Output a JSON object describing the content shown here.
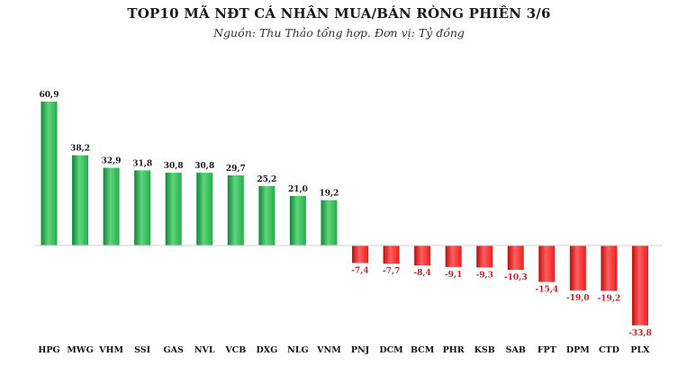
{
  "chart_data": {
    "type": "bar",
    "title": "TOP10 MÃ NĐT CÁ NHÂN MUA/BÁN RÒNG PHIÊN 3/6",
    "subtitle": "Nguồn: Thu Thảo tổng hợp. Đơn vị: Tỷ đồng",
    "xlabel": "",
    "ylabel": "",
    "grid": false,
    "legend": "none",
    "categories": [
      "HPG",
      "MWG",
      "VHM",
      "SSI",
      "GAS",
      "NVL",
      "VCB",
      "DXG",
      "NLG",
      "VNM",
      "PNJ",
      "DCM",
      "BCM",
      "PHR",
      "KSB",
      "SAB",
      "FPT",
      "DPM",
      "CTD",
      "PLX"
    ],
    "values": [
      60.9,
      38.2,
      32.9,
      31.8,
      30.8,
      30.8,
      29.7,
      25.2,
      21.0,
      19.2,
      -7.4,
      -7.7,
      -8.4,
      -9.1,
      -9.3,
      -10.3,
      -15.4,
      -19.0,
      -19.2,
      -33.8
    ],
    "value_labels": [
      "60,9",
      "38,2",
      "32,9",
      "31,8",
      "30,8",
      "30,8",
      "29,7",
      "25,2",
      "21,0",
      "19,2",
      "-7,4",
      "-7,7",
      "-8,4",
      "-9,1",
      "-9,3",
      "-10,3",
      "-15,4",
      "-19,0",
      "-19,2",
      "-33,8"
    ],
    "ylim": [
      -33.8,
      60.9
    ],
    "colors": {
      "positive": "#21b04b",
      "positive_light": "#5ed57d",
      "positive_dark": "#13843a",
      "negative": "#ee1c1c",
      "negative_light": "#ff6060",
      "negative_dark": "#bb0d0d",
      "positive_label": "#1a1a1a",
      "negative_label": "#d42020",
      "axis": "#d0d0d0"
    }
  }
}
